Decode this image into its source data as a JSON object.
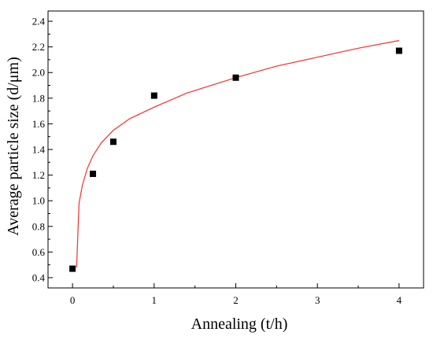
{
  "chart_data": {
    "type": "scatter",
    "xlabel": "Annealing (t/h)",
    "ylabel": "Average particle size (d/μm)",
    "xlim": [
      -0.3,
      4.3
    ],
    "ylim": [
      0.32,
      2.48
    ],
    "x_ticks": [
      0,
      1,
      2,
      3,
      4
    ],
    "y_ticks": [
      0.4,
      0.6,
      0.8,
      1.0,
      1.2,
      1.4,
      1.6,
      1.8,
      2.0,
      2.2,
      2.4
    ],
    "x_tick_labels": [
      "0",
      "1",
      "2",
      "3",
      "4"
    ],
    "y_tick_labels": [
      "0.4",
      "0.6",
      "0.8",
      "1.0",
      "1.2",
      "1.4",
      "1.6",
      "1.8",
      "2.0",
      "2.2",
      "2.4"
    ],
    "grid": false,
    "series": [
      {
        "kind": "points",
        "marker": "square",
        "color": "#000000",
        "x": [
          0,
          0.25,
          0.5,
          1,
          2,
          4
        ],
        "y": [
          0.47,
          1.21,
          1.46,
          1.82,
          1.96,
          2.17
        ]
      },
      {
        "kind": "fit-line",
        "color": "#ff2a2a",
        "x": [
          0.05,
          0.08,
          0.12,
          0.18,
          0.25,
          0.35,
          0.5,
          0.7,
          1.0,
          1.4,
          2.0,
          2.5,
          3.0,
          3.5,
          4.0
        ],
        "y": [
          0.48,
          0.98,
          1.12,
          1.25,
          1.35,
          1.45,
          1.55,
          1.64,
          1.73,
          1.84,
          1.96,
          2.05,
          2.12,
          2.19,
          2.25
        ]
      }
    ]
  }
}
